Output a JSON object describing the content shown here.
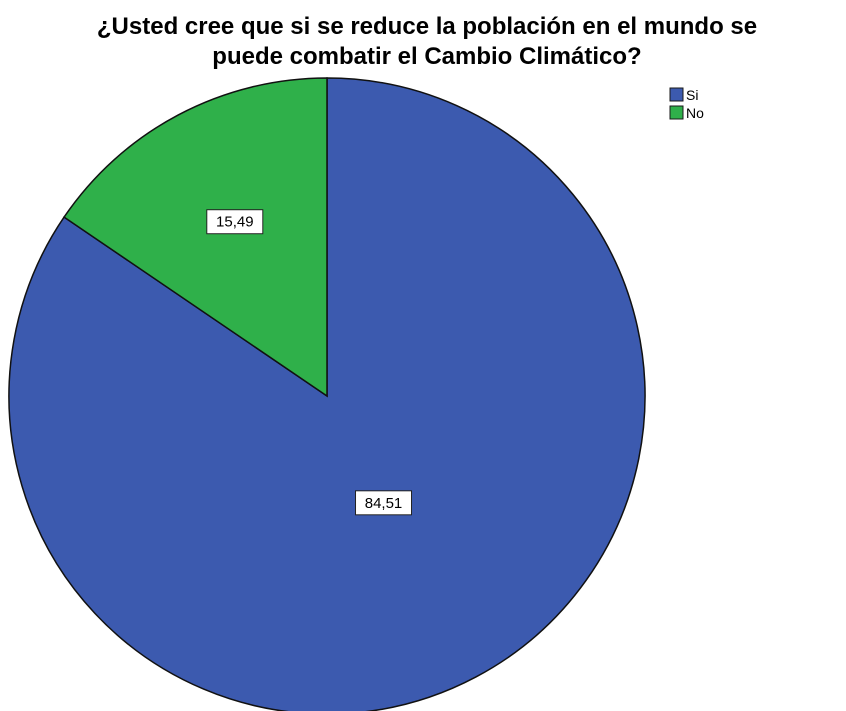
{
  "chart_data": {
    "type": "pie",
    "title_lines": [
      "¿Usted cree que si se reduce la población en el mundo se",
      "puede combatir el Cambio Climático?"
    ],
    "slices": [
      {
        "label": "Si",
        "value": 84.51,
        "display": "84,51",
        "color": "#3c5aaf"
      },
      {
        "label": "No",
        "value": 15.49,
        "display": "15,49",
        "color": "#2fb04a"
      }
    ],
    "legend": {
      "position": "top-right",
      "entries": [
        "Si",
        "No"
      ]
    }
  }
}
